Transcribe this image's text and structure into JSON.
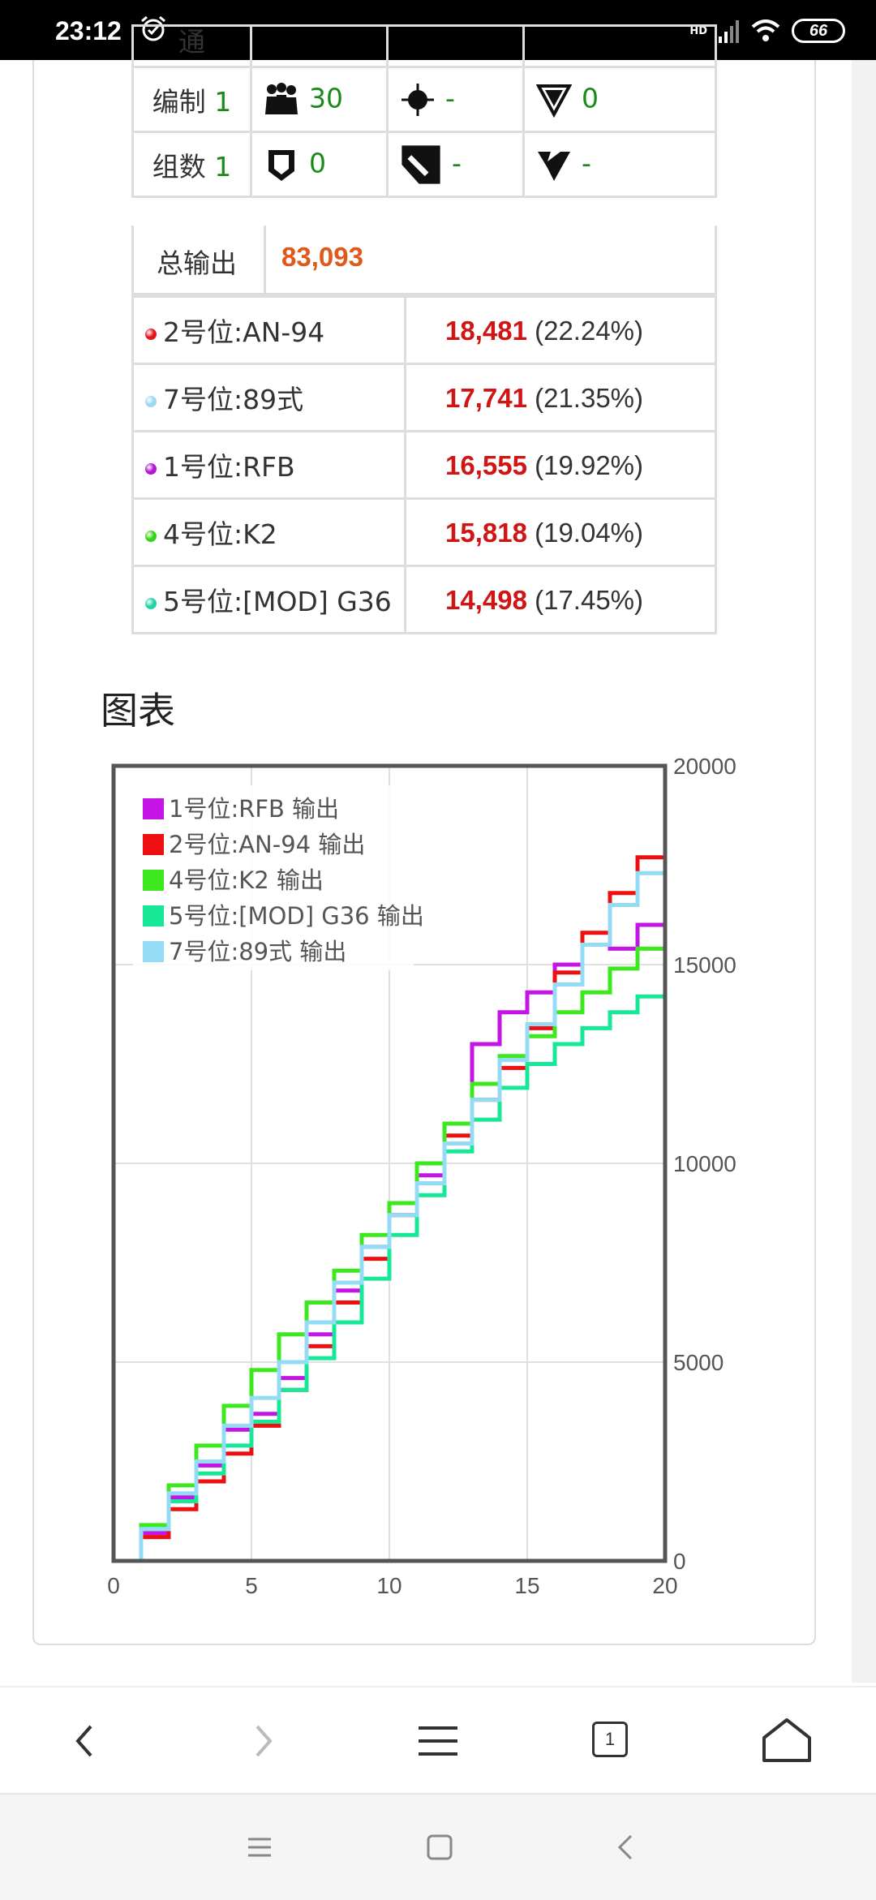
{
  "status_bar": {
    "time": "23:12",
    "hd": "HD",
    "battery": "66"
  },
  "stats": {
    "partial_row_label": "通",
    "row1": {
      "label": "编制",
      "level": "1",
      "c1": "30",
      "c2": "-",
      "c3": "0"
    },
    "row2": {
      "label": "组数",
      "level": "1",
      "c1": "0",
      "c2": "-",
      "c3": "-"
    }
  },
  "total": {
    "label": "总输出",
    "value": "83,093"
  },
  "ranking": [
    {
      "name": "2号位:AN-94",
      "damage": "18,481",
      "percent": "(22.24%)",
      "color": "#e8141c"
    },
    {
      "name": "7号位:89式",
      "damage": "17,741",
      "percent": "(21.35%)",
      "color": "#9cd6f0"
    },
    {
      "name": "1号位:RFB",
      "damage": "16,555",
      "percent": "(19.92%)",
      "color": "#b515d0"
    },
    {
      "name": "4号位:K2",
      "damage": "15,818",
      "percent": "(19.04%)",
      "color": "#33d414"
    },
    {
      "name": "5号位:[MOD] G36",
      "damage": "14,498",
      "percent": "(17.45%)",
      "color": "#1ed4a6"
    }
  ],
  "chart_heading": "图表",
  "chart_data": {
    "type": "line",
    "step": true,
    "xlim": [
      0,
      20
    ],
    "ylim": [
      0,
      20000
    ],
    "x_ticks": [
      "0",
      "5",
      "10",
      "15",
      "20"
    ],
    "y_ticks": [
      "0",
      "5000",
      "10000",
      "15000",
      "20000"
    ],
    "y_axis_side": "right",
    "grid": true,
    "legend": "top-left",
    "series": [
      {
        "name": "1号位:RFB 输出",
        "color": "#c414e6",
        "final": 16555,
        "points": [
          [
            0,
            0
          ],
          [
            1,
            700
          ],
          [
            2,
            1600
          ],
          [
            3,
            2400
          ],
          [
            4,
            3300
          ],
          [
            5,
            3700
          ],
          [
            6,
            4600
          ],
          [
            7,
            5700
          ],
          [
            8,
            6800
          ],
          [
            9,
            7900
          ],
          [
            10,
            9000
          ],
          [
            11,
            9700
          ],
          [
            12,
            11000
          ],
          [
            13,
            13000
          ],
          [
            14,
            13800
          ],
          [
            15,
            14300
          ],
          [
            16,
            15000
          ],
          [
            17,
            15500
          ],
          [
            18,
            15400
          ],
          [
            19,
            16000
          ],
          [
            20,
            16555
          ]
        ]
      },
      {
        "name": "2号位:AN-94 输出",
        "color": "#ee1010",
        "final": 18481,
        "points": [
          [
            0,
            0
          ],
          [
            1,
            600
          ],
          [
            2,
            1300
          ],
          [
            3,
            2000
          ],
          [
            4,
            2700
          ],
          [
            5,
            3400
          ],
          [
            6,
            4300
          ],
          [
            7,
            5400
          ],
          [
            8,
            6500
          ],
          [
            9,
            7600
          ],
          [
            10,
            8700
          ],
          [
            11,
            10000
          ],
          [
            12,
            10700
          ],
          [
            13,
            11600
          ],
          [
            14,
            12400
          ],
          [
            15,
            13400
          ],
          [
            16,
            14800
          ],
          [
            17,
            15800
          ],
          [
            18,
            16800
          ],
          [
            19,
            17700
          ],
          [
            20,
            18481
          ]
        ]
      },
      {
        "name": "4号位:K2 输出",
        "color": "#3de81e",
        "final": 15818,
        "points": [
          [
            0,
            0
          ],
          [
            1,
            900
          ],
          [
            2,
            1900
          ],
          [
            3,
            2900
          ],
          [
            4,
            3900
          ],
          [
            5,
            4800
          ],
          [
            6,
            5700
          ],
          [
            7,
            6500
          ],
          [
            8,
            7300
          ],
          [
            9,
            8200
          ],
          [
            10,
            9000
          ],
          [
            11,
            10000
          ],
          [
            12,
            11000
          ],
          [
            13,
            12000
          ],
          [
            14,
            12700
          ],
          [
            15,
            13200
          ],
          [
            16,
            13800
          ],
          [
            17,
            14300
          ],
          [
            18,
            14900
          ],
          [
            19,
            15400
          ],
          [
            20,
            15818
          ]
        ]
      },
      {
        "name": "5号位:[MOD] G36 输出",
        "color": "#16e898",
        "final": 14498,
        "points": [
          [
            0,
            0
          ],
          [
            1,
            800
          ],
          [
            2,
            1500
          ],
          [
            3,
            2200
          ],
          [
            4,
            2900
          ],
          [
            5,
            3500
          ],
          [
            6,
            4300
          ],
          [
            7,
            5100
          ],
          [
            8,
            6000
          ],
          [
            9,
            7100
          ],
          [
            10,
            8200
          ],
          [
            11,
            9200
          ],
          [
            12,
            10300
          ],
          [
            13,
            11100
          ],
          [
            14,
            11900
          ],
          [
            15,
            12500
          ],
          [
            16,
            13000
          ],
          [
            17,
            13400
          ],
          [
            18,
            13800
          ],
          [
            19,
            14200
          ],
          [
            20,
            14498
          ]
        ]
      },
      {
        "name": "7号位:89式 输出",
        "color": "#94dcf5",
        "final": 17741,
        "points": [
          [
            0,
            0
          ],
          [
            1,
            800
          ],
          [
            2,
            1700
          ],
          [
            3,
            2500
          ],
          [
            4,
            3400
          ],
          [
            5,
            4100
          ],
          [
            6,
            5000
          ],
          [
            7,
            6000
          ],
          [
            8,
            7000
          ],
          [
            9,
            7900
          ],
          [
            10,
            8700
          ],
          [
            11,
            9500
          ],
          [
            12,
            10500
          ],
          [
            13,
            11600
          ],
          [
            14,
            12600
          ],
          [
            15,
            13500
          ],
          [
            16,
            14500
          ],
          [
            17,
            15500
          ],
          [
            18,
            16500
          ],
          [
            19,
            17300
          ],
          [
            20,
            17741
          ]
        ]
      }
    ]
  },
  "browser_toolbar": {
    "tab_count": "1"
  }
}
